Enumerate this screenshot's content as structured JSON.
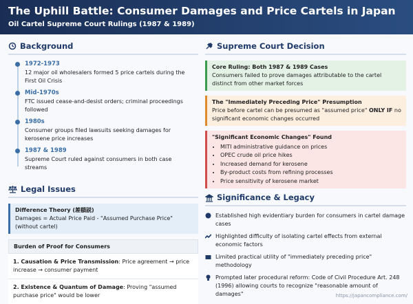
{
  "header": {
    "title": "The Uphill Battle: Consumer Damages and Price Cartels in Japan",
    "subtitle": "Oil Cartel Supreme Court Rulings (1987 & 1989)"
  },
  "background": {
    "heading": "Background",
    "timeline": [
      {
        "date": "1972-1973",
        "text": "12 major oil wholesalers formed 5 price cartels during the First Oil Crisis"
      },
      {
        "date": "Mid-1970s",
        "text": "FTC issued cease-and-desist orders; criminal proceedings followed"
      },
      {
        "date": "1980s",
        "text": "Consumer groups filed lawsuits seeking damages for kerosene price increases"
      },
      {
        "date": "1987 & 1989",
        "text": "Supreme Court ruled against consumers in both case streams"
      }
    ]
  },
  "legal_issues": {
    "heading": "Legal Issues",
    "difference_theory": {
      "title": "Difference Theory (差額説)",
      "text": "Damages = Actual Price Paid - \"Assumed Purchase Price\" (without cartel)"
    },
    "burden": {
      "title": "Burden of Proof for Consumers",
      "items": [
        {
          "lead": "1. Causation & Price Transmission",
          "text": ": Price agreement → price increase → consumer payment"
        },
        {
          "lead": "2. Existence & Quantum of Damage",
          "text": ": Proving \"assumed purchase price\" would be lower"
        }
      ]
    }
  },
  "decision": {
    "heading": "Supreme Court Decision",
    "core": {
      "title": "Core Ruling: Both 1987 & 1989 Cases",
      "text": "Consumers failed to prove damages attributable to the cartel distinct from other market forces"
    },
    "presumption": {
      "title": "The \"Immediately Preceding Price\" Presumption",
      "text_before": "Price before cartel can be presumed as \"assumed price\" ",
      "emphasis": "ONLY IF",
      "text_after": " no significant economic changes occurred"
    },
    "changes": {
      "title": "\"Significant Economic Changes\" Found",
      "items": [
        "MITI administrative guidance on prices",
        "OPEC crude oil price hikes",
        "Increased demand for kerosene",
        "By-product costs from refining processes",
        "Price sensitivity of kerosene market"
      ]
    }
  },
  "significance": {
    "heading": "Significance & Legacy",
    "items": [
      "Established high evidentiary burden for consumers in cartel damage cases",
      "Highlighted difficulty of isolating cartel effects from external economic factors",
      "Limited practical utility of \"immediately preceding price\" methodology",
      "Prompted later procedural reform: Code of Civil Procedure Art. 248 (1996) allowing courts to recognize \"reasonable amount of damages\""
    ]
  },
  "footer": {
    "url": "https://japancompliance.com/"
  }
}
